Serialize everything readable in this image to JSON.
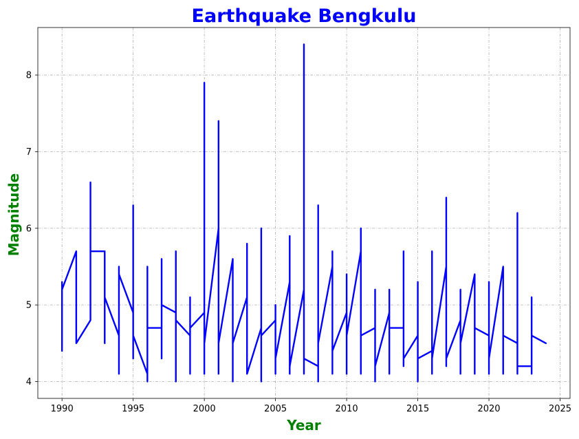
{
  "colors": {
    "title": "#0000ff",
    "axis_labels": "#008000",
    "series": "#0000ff",
    "background": "#ffffff"
  },
  "chart_data": {
    "type": "line",
    "title": "Earthquake Bengkulu",
    "xlabel": "Year",
    "ylabel": "Magnitude",
    "xlim": [
      1988.3,
      2025.7
    ],
    "ylim": [
      3.78,
      8.62
    ],
    "xticks": [
      1990,
      1995,
      2000,
      2005,
      2010,
      2015,
      2020,
      2025
    ],
    "yticks": [
      4,
      5,
      6,
      7,
      8
    ],
    "grid": true,
    "series": [
      {
        "points": [
          [
            1990,
            4.4
          ],
          [
            1990,
            5.3
          ],
          [
            1990,
            5.2
          ],
          [
            1991,
            5.7
          ],
          [
            1991,
            4.5
          ],
          [
            1992,
            4.8
          ],
          [
            1992,
            6.6
          ],
          [
            1992,
            5.7
          ],
          [
            1993,
            5.7
          ],
          [
            1993,
            4.5
          ],
          [
            1993,
            5.1
          ],
          [
            1994,
            4.6
          ],
          [
            1994,
            4.1
          ],
          [
            1994,
            5.5
          ],
          [
            1994,
            5.4
          ],
          [
            1995,
            4.9
          ],
          [
            1995,
            4.3
          ],
          [
            1995,
            6.3
          ],
          [
            1995,
            4.6
          ],
          [
            1996,
            4.1
          ],
          [
            1996,
            4.0
          ],
          [
            1996,
            5.5
          ],
          [
            1996,
            4.7
          ],
          [
            1997,
            4.7
          ],
          [
            1997,
            4.3
          ],
          [
            1997,
            5.6
          ],
          [
            1997,
            5.0
          ],
          [
            1998,
            4.9
          ],
          [
            1998,
            4.0
          ],
          [
            1998,
            5.7
          ],
          [
            1998,
            4.8
          ],
          [
            1999,
            4.6
          ],
          [
            1999,
            4.1
          ],
          [
            1999,
            5.1
          ],
          [
            1999,
            4.7
          ],
          [
            2000,
            4.9
          ],
          [
            2000,
            4.1
          ],
          [
            2000,
            7.9
          ],
          [
            2000,
            4.5
          ],
          [
            2001,
            6.0
          ],
          [
            2001,
            4.1
          ],
          [
            2001,
            7.4
          ],
          [
            2001,
            4.5
          ],
          [
            2002,
            5.6
          ],
          [
            2002,
            4.0
          ],
          [
            2002,
            4.5
          ],
          [
            2003,
            5.1
          ],
          [
            2003,
            5.8
          ],
          [
            2003,
            4.1
          ],
          [
            2004,
            4.7
          ],
          [
            2004,
            4.0
          ],
          [
            2004,
            6.0
          ],
          [
            2004,
            4.6
          ],
          [
            2005,
            4.8
          ],
          [
            2005,
            4.1
          ],
          [
            2005,
            5.0
          ],
          [
            2005,
            4.3
          ],
          [
            2006,
            5.3
          ],
          [
            2006,
            4.1
          ],
          [
            2006,
            5.9
          ],
          [
            2006,
            4.2
          ],
          [
            2007,
            5.2
          ],
          [
            2007,
            4.1
          ],
          [
            2007,
            8.4
          ],
          [
            2007,
            4.3
          ],
          [
            2008,
            4.2
          ],
          [
            2008,
            4.0
          ],
          [
            2008,
            6.3
          ],
          [
            2008,
            4.5
          ],
          [
            2009,
            5.5
          ],
          [
            2009,
            4.1
          ],
          [
            2009,
            5.7
          ],
          [
            2009,
            4.4
          ],
          [
            2010,
            4.9
          ],
          [
            2010,
            4.1
          ],
          [
            2010,
            5.4
          ],
          [
            2010,
            4.6
          ],
          [
            2011,
            5.7
          ],
          [
            2011,
            4.1
          ],
          [
            2011,
            6.0
          ],
          [
            2011,
            4.6
          ],
          [
            2012,
            4.7
          ],
          [
            2012,
            4.0
          ],
          [
            2012,
            5.2
          ],
          [
            2012,
            4.2
          ],
          [
            2013,
            4.9
          ],
          [
            2013,
            4.1
          ],
          [
            2013,
            5.2
          ],
          [
            2013,
            4.7
          ],
          [
            2014,
            4.7
          ],
          [
            2014,
            4.2
          ],
          [
            2014,
            5.7
          ],
          [
            2014,
            4.3
          ],
          [
            2015,
            4.6
          ],
          [
            2015,
            4.0
          ],
          [
            2015,
            5.3
          ],
          [
            2015,
            4.3
          ],
          [
            2016,
            4.4
          ],
          [
            2016,
            4.1
          ],
          [
            2016,
            5.7
          ],
          [
            2016,
            4.3
          ],
          [
            2017,
            5.5
          ],
          [
            2017,
            4.2
          ],
          [
            2017,
            6.4
          ],
          [
            2017,
            4.3
          ],
          [
            2018,
            4.8
          ],
          [
            2018,
            4.1
          ],
          [
            2018,
            5.2
          ],
          [
            2018,
            4.5
          ],
          [
            2019,
            5.4
          ],
          [
            2019,
            4.1
          ],
          [
            2019,
            5.4
          ],
          [
            2019,
            4.7
          ],
          [
            2020,
            4.6
          ],
          [
            2020,
            4.1
          ],
          [
            2020,
            5.3
          ],
          [
            2020,
            4.3
          ],
          [
            2021,
            5.5
          ],
          [
            2021,
            4.1
          ],
          [
            2021,
            5.5
          ],
          [
            2021,
            4.6
          ],
          [
            2022,
            4.5
          ],
          [
            2022,
            4.1
          ],
          [
            2022,
            6.2
          ],
          [
            2022,
            4.2
          ],
          [
            2023,
            4.2
          ],
          [
            2023,
            4.1
          ],
          [
            2023,
            5.1
          ],
          [
            2023,
            4.6
          ],
          [
            2024,
            4.5
          ]
        ]
      }
    ]
  }
}
